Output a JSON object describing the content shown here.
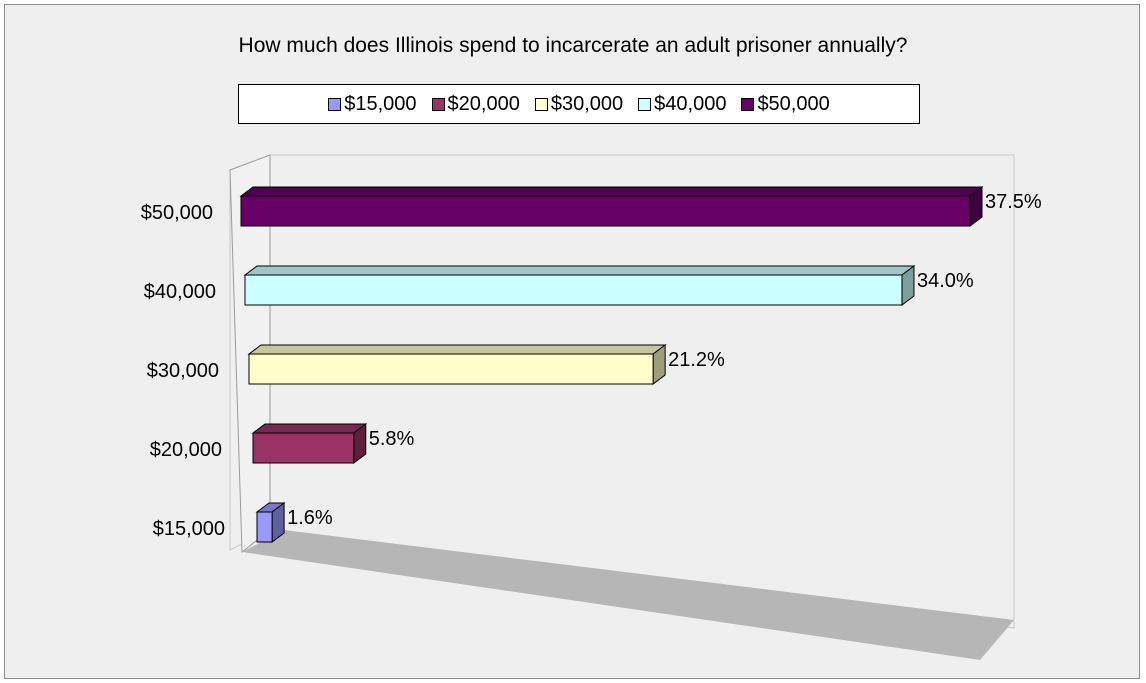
{
  "chart_data": {
    "type": "bar",
    "orientation": "horizontal",
    "three_d": true,
    "title": "How much does Illinois spend to incarcerate an adult prisoner annually?",
    "categories": [
      "$15,000",
      "$20,000",
      "$30,000",
      "$40,000",
      "$50,000"
    ],
    "values": [
      1.6,
      5.8,
      21.2,
      34.0,
      37.5
    ],
    "value_labels": [
      "1.6%",
      "5.8%",
      "21.2%",
      "34.0%",
      "37.5%"
    ],
    "colors": [
      "#9999ff",
      "#993366",
      "#ffffcc",
      "#ccffff",
      "#660066"
    ],
    "legend": {
      "placement": "top",
      "entries": [
        "$15,000",
        "$20,000",
        "$30,000",
        "$40,000",
        "$50,000"
      ]
    },
    "xlim": [
      0,
      37.5
    ],
    "grid": false
  }
}
